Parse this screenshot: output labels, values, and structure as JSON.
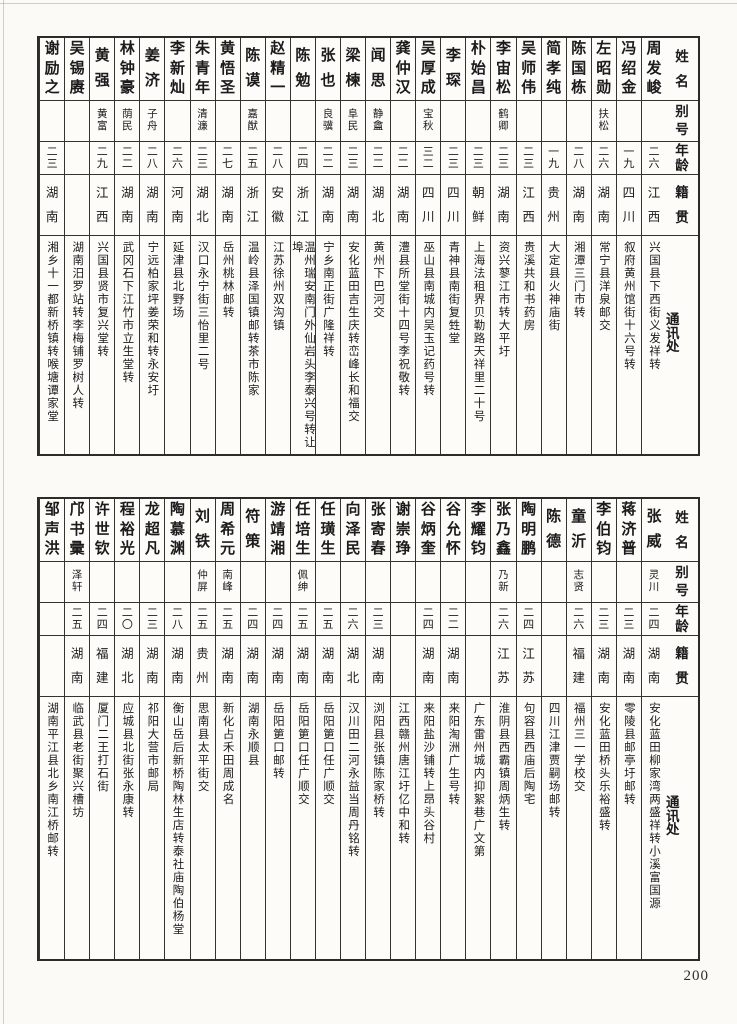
{
  "page": {
    "number": "200",
    "ink": "#1b1b1b",
    "paper": "#fbfaf7",
    "rule_color": "#35332e"
  },
  "headers": {
    "name": "姓名",
    "alias": "别号",
    "age": "年龄",
    "origin": "籍贯",
    "address": "通讯处"
  },
  "tables": [
    {
      "id": "top",
      "persons": [
        {
          "name": "周发峻",
          "alias": "",
          "age": "二六",
          "origin": "江西",
          "address": "兴国县下西街义发祥转"
        },
        {
          "name": "冯绍金",
          "alias": "",
          "age": "一九",
          "origin": "四川",
          "address": "叙府黄州馆街十六号转"
        },
        {
          "name": "左昭勋",
          "alias": "扶松",
          "age": "二六",
          "origin": "湖南",
          "address": "常宁县洋泉邮交"
        },
        {
          "name": "陈国栋",
          "alias": "",
          "age": "二八",
          "origin": "湖南",
          "address": "湘潭三门市转"
        },
        {
          "name": "简孝纯",
          "alias": "",
          "age": "一九",
          "origin": "贵州",
          "address": "大定县火神庙街"
        },
        {
          "name": "吴师伟",
          "alias": "",
          "age": "二三",
          "origin": "江西",
          "address": "贵溪共和书药房"
        },
        {
          "name": "李宙松",
          "alias": "鹤卿",
          "age": "二三",
          "origin": "湖南",
          "address": "资兴蓼江市转大平圩"
        },
        {
          "name": "朴始昌",
          "alias": "",
          "age": "二三",
          "origin": "朝鲜",
          "address": "上海法租界贝勒路天祥里二十号"
        },
        {
          "name": "李琛",
          "alias": "",
          "age": "二三",
          "origin": "四川",
          "address": "青神县南街复甡堂"
        },
        {
          "name": "吴厚成",
          "alias": "宝秋",
          "age": "三二",
          "origin": "四川",
          "address": "巫山县南城内吴玉记药号转"
        },
        {
          "name": "龚仲汉",
          "alias": "",
          "age": "二二",
          "origin": "湖南",
          "address": "澧县所堂街十四号李祝敬转"
        },
        {
          "name": "闻思",
          "alias": "静盦",
          "age": "二二",
          "origin": "湖北",
          "address": "黄州下巴河交"
        },
        {
          "name": "梁楝",
          "alias": "阜民",
          "age": "二三",
          "origin": "湖南",
          "address": "安化蓝田吉生庆转峦峰长和福交"
        },
        {
          "name": "张也",
          "alias": "良骥",
          "age": "二二",
          "origin": "湖南",
          "address": "宁乡南正街广隆祥转"
        },
        {
          "name": "陈勉",
          "alias": "",
          "age": "二四",
          "origin": "浙江",
          "address": "温州瑞安南门外仙岩头李泰兴号转让埠"
        },
        {
          "name": "赵精一",
          "alias": "",
          "age": "二八",
          "origin": "安徽",
          "address": "江苏徐州双沟镇"
        },
        {
          "name": "陈谟",
          "alias": "嘉猷",
          "age": "二五",
          "origin": "浙江",
          "address": "温岭县泽国镇邮转茶市陈家"
        },
        {
          "name": "黄悟圣",
          "alias": "",
          "age": "二七",
          "origin": "湖南",
          "address": "岳州桃林邮转"
        },
        {
          "name": "朱青年",
          "alias": "清濂",
          "age": "二三",
          "origin": "湖北",
          "address": "汉口永宁街三怡里二号"
        },
        {
          "name": "李新灿",
          "alias": "",
          "age": "二六",
          "origin": "河南",
          "address": "延津县北野场"
        },
        {
          "name": "姜济",
          "alias": "子舟",
          "age": "二八",
          "origin": "湖南",
          "address": "宁远柏家坪姜荣和转永安圩"
        },
        {
          "name": "林钟豪",
          "alias": "荫民",
          "age": "二二",
          "origin": "湖南",
          "address": "武冈石下江竹市立生堂转"
        },
        {
          "name": "黄强",
          "alias": "黄富",
          "age": "二九",
          "origin": "江西",
          "address": "兴国县贤市复兴堂转"
        },
        {
          "name": "吴锡赓",
          "alias": "",
          "age": "",
          "origin": "",
          "address": "湖南汨罗站转李梅铺罗树人转"
        },
        {
          "name": "谢励之",
          "alias": "",
          "age": "二三",
          "origin": "湖南",
          "address": "湘乡十一都新桥镇转喉塘谭家堂"
        }
      ]
    },
    {
      "id": "bottom",
      "persons": [
        {
          "name": "张威",
          "alias": "灵川",
          "age": "二四",
          "origin": "湖南",
          "address": "安化蓝田柳家湾两盛祥转小溪富国源"
        },
        {
          "name": "蒋济普",
          "alias": "",
          "age": "二三",
          "origin": "湖南",
          "address": "零陵县邮亭圩邮转"
        },
        {
          "name": "李伯钧",
          "alias": "",
          "age": "二三",
          "origin": "湖南",
          "address": "安化蓝田桥头乐裕盛转"
        },
        {
          "name": "童沂",
          "alias": "志贤",
          "age": "二六",
          "origin": "福建",
          "address": "福州三一学校交"
        },
        {
          "name": "陈德",
          "alias": "",
          "age": "",
          "origin": "",
          "address": "四川江津贾嗣场邮转"
        },
        {
          "name": "陶明鹏",
          "alias": "",
          "age": "二四",
          "origin": "江苏",
          "address": "句容县西庙后陶宅"
        },
        {
          "name": "张乃鑫",
          "alias": "乃新",
          "age": "二六",
          "origin": "江苏",
          "address": "淮阴县西霸镇周炳生转"
        },
        {
          "name": "李耀钧",
          "alias": "",
          "age": "",
          "origin": "",
          "address": "广东雷州城内抑絮巷广文第"
        },
        {
          "name": "谷允怀",
          "alias": "",
          "age": "二二",
          "origin": "湖南",
          "address": "来阳淘洲广生号转"
        },
        {
          "name": "谷炳奎",
          "alias": "",
          "age": "二四",
          "origin": "湖南",
          "address": "来阳盐沙铺转上昂头谷村"
        },
        {
          "name": "谢崇琤",
          "alias": "",
          "age": "",
          "origin": "",
          "address": "江西赣州唐江圩亿中和转"
        },
        {
          "name": "张寄春",
          "alias": "",
          "age": "二三",
          "origin": "湖南",
          "address": "浏阳县张镇陈家桥转"
        },
        {
          "name": "向泽民",
          "alias": "",
          "age": "二六",
          "origin": "湖北",
          "address": "汉川田二河永益当周丹铭转"
        },
        {
          "name": "任璜生",
          "alias": "",
          "age": "二五",
          "origin": "湖南",
          "address": "岳阳筻口任广顺交"
        },
        {
          "name": "任培生",
          "alias": "佩绅",
          "age": "二五",
          "origin": "湖南",
          "address": "岳阳筻口任广顺交"
        },
        {
          "name": "游靖湘",
          "alias": "",
          "age": "二四",
          "origin": "湖南",
          "address": "岳阳筻口邮转"
        },
        {
          "name": "符策",
          "alias": "",
          "age": "二四",
          "origin": "湖南",
          "address": "湖南永顺县"
        },
        {
          "name": "周希元",
          "alias": "南峰",
          "age": "二五",
          "origin": "湖南",
          "address": "新化占禾田周成名"
        },
        {
          "name": "刘铁",
          "alias": "仲屏",
          "age": "二五",
          "origin": "贵州",
          "address": "思南县太平街交"
        },
        {
          "name": "陶慕渊",
          "alias": "",
          "age": "二八",
          "origin": "湖南",
          "address": "衡山岳后新桥陶林生店转泰社庙陶伯杨堂"
        },
        {
          "name": "龙超凡",
          "alias": "",
          "age": "二三",
          "origin": "湖南",
          "address": "祁阳大营市邮局"
        },
        {
          "name": "程裕光",
          "alias": "",
          "age": "二〇",
          "origin": "湖北",
          "address": "应城县北街张永康转"
        },
        {
          "name": "许世钦",
          "alias": "",
          "age": "二四",
          "origin": "福建",
          "address": "厦门二王打石街"
        },
        {
          "name": "邝书彚",
          "alias": "泽轩",
          "age": "二五",
          "origin": "湖南",
          "address": "临武县老街聚兴槽坊"
        },
        {
          "name": "邹声洪",
          "alias": "",
          "age": "",
          "origin": "",
          "address": "湖南平江县北乡南江桥邮转"
        }
      ]
    }
  ]
}
